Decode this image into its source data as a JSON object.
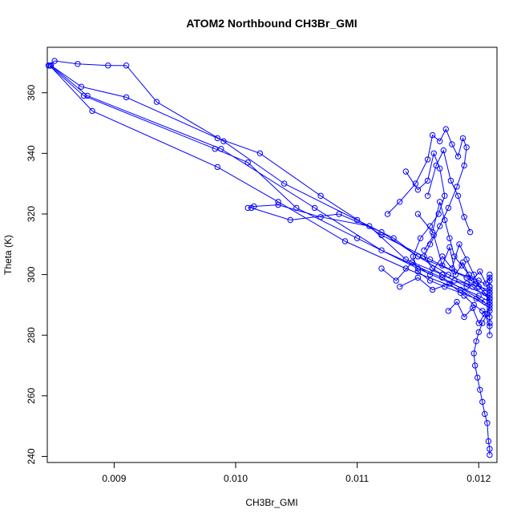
{
  "chart_data": {
    "type": "line",
    "title": "ATOM2 Northbound CH3Br_GMI",
    "xlabel": "CH3Br_GMI",
    "ylabel": "Theta (K)",
    "xlim": [
      0.00845,
      0.01215
    ],
    "ylim": [
      238,
      375
    ],
    "xticks": [
      0.009,
      0.01,
      0.011,
      0.012
    ],
    "xtick_labels": [
      "0.009",
      "0.010",
      "0.011",
      "0.012"
    ],
    "yticks": [
      240,
      260,
      280,
      300,
      320,
      340,
      360
    ],
    "ytick_labels": [
      "240",
      "260",
      "280",
      "300",
      "320",
      "340",
      "360"
    ],
    "grid": false,
    "color": "#0000ff",
    "marker": "open-circle",
    "series": [
      {
        "x": [
          0.01209,
          0.01209,
          0.01208,
          0.01207,
          0.01205,
          0.01203,
          0.01201,
          0.01199,
          0.01197,
          0.01196,
          0.01198,
          0.012,
          0.01203,
          0.01207,
          0.01209,
          0.01209,
          0.01209,
          0.01209,
          0.01209,
          0.01209,
          0.01209,
          0.01209,
          0.01209,
          0.01209,
          0.01209
        ],
        "y": [
          240.5,
          242.5,
          245,
          251,
          254,
          258,
          262,
          266,
          270,
          274,
          278,
          281,
          284,
          287,
          290,
          292,
          294,
          296,
          298,
          300,
          296,
          292,
          288,
          284,
          280
        ]
      },
      {
        "x": [
          0.00846,
          0.00851,
          0.0087,
          0.00895,
          0.0091,
          0.00935,
          0.0099,
          0.0104,
          0.011,
          0.0113,
          0.0115,
          0.0118,
          0.012,
          0.01209
        ],
        "y": [
          369,
          370.5,
          369.5,
          369,
          369,
          357,
          344,
          330,
          318,
          312,
          306,
          301,
          298,
          296
        ]
      },
      {
        "x": [
          0.00848,
          0.00873,
          0.0091,
          0.00985,
          0.0102,
          0.0107,
          0.0112,
          0.0116,
          0.0119,
          0.01209
        ],
        "y": [
          369,
          362,
          358.5,
          345,
          340,
          326,
          313,
          305,
          299,
          294
        ]
      },
      {
        "x": [
          0.00847,
          0.00875,
          0.00983,
          0.0101,
          0.0105,
          0.011,
          0.0115,
          0.012,
          0.01209
        ],
        "y": [
          369,
          359,
          341.5,
          337,
          322,
          312,
          302,
          293,
          291
        ]
      },
      {
        "x": [
          0.00847,
          0.00882,
          0.00985,
          0.01035,
          0.0109,
          0.0114,
          0.01185,
          0.01209
        ],
        "y": [
          369,
          354,
          335.5,
          324,
          311,
          302,
          295,
          289
        ]
      },
      {
        "x": [
          0.00848,
          0.00878,
          0.00988,
          0.01065,
          0.0112,
          0.0117,
          0.01205
        ],
        "y": [
          369,
          359,
          341.5,
          322,
          308,
          299,
          291
        ]
      },
      {
        "x": [
          0.0101,
          0.01015,
          0.01035,
          0.0107,
          0.0111,
          0.0114,
          0.0117,
          0.0119,
          0.01209
        ],
        "y": [
          322,
          322.5,
          323,
          319,
          316,
          305,
          300,
          296,
          293
        ]
      },
      {
        "x": [
          0.01013,
          0.01045,
          0.01085,
          0.0112,
          0.0115,
          0.01175,
          0.01195,
          0.01209
        ],
        "y": [
          322,
          318,
          320,
          314,
          306,
          300,
          296,
          292
        ]
      },
      {
        "x": [
          0.01125,
          0.01135,
          0.01148,
          0.01158,
          0.01162,
          0.01168,
          0.01173,
          0.01178,
          0.01183,
          0.01187,
          0.0119,
          0.01188,
          0.01182,
          0.01175,
          0.01168,
          0.0116,
          0.01155,
          0.01162,
          0.0117,
          0.0118,
          0.0119,
          0.012,
          0.01209
        ],
        "y": [
          320,
          324,
          330,
          338,
          346,
          344,
          348,
          343,
          339,
          345,
          342,
          336,
          329,
          322,
          316,
          310,
          306,
          302,
          300,
          298,
          297,
          296,
          295
        ]
      },
      {
        "x": [
          0.0114,
          0.0115,
          0.01158,
          0.01163,
          0.01168,
          0.01172,
          0.01167,
          0.0116,
          0.01152,
          0.01146,
          0.0115,
          0.0116,
          0.01172,
          0.01185,
          0.01198,
          0.01209
        ],
        "y": [
          334,
          328,
          331,
          340,
          335,
          326,
          320,
          316,
          312,
          306,
          301,
          298,
          296,
          294,
          292,
          290
        ]
      },
      {
        "x": [
          0.0112,
          0.01132,
          0.01145,
          0.0116,
          0.0117,
          0.01178,
          0.01184,
          0.0119,
          0.01196,
          0.012,
          0.01205,
          0.01209
        ],
        "y": [
          302,
          298,
          304,
          300,
          306,
          302,
          310,
          305,
          300,
          296,
          294,
          291
        ]
      },
      {
        "x": [
          0.01135,
          0.0115,
          0.01162,
          0.01176,
          0.01188,
          0.01196,
          0.01203,
          0.01209
        ],
        "y": [
          296,
          299,
          295,
          297,
          293,
          290,
          288,
          286
        ]
      },
      {
        "x": [
          0.0115,
          0.01162,
          0.01168,
          0.01172,
          0.01176,
          0.0118,
          0.01186,
          0.01192,
          0.01198,
          0.01205,
          0.01209
        ],
        "y": [
          320,
          314,
          324,
          318,
          312,
          306,
          303,
          300,
          297,
          294,
          292
        ]
      },
      {
        "x": [
          0.01155,
          0.01163,
          0.0117,
          0.01176,
          0.01181,
          0.01187,
          0.01194,
          0.01201,
          0.01206,
          0.01209
        ],
        "y": [
          308,
          313,
          303,
          309,
          300,
          304,
          298,
          301,
          297,
          299
        ]
      },
      {
        "x": [
          0.01175,
          0.01182,
          0.01188,
          0.01195,
          0.012,
          0.01205,
          0.01209
        ],
        "y": [
          288,
          291,
          286,
          289,
          284,
          287,
          283
        ]
      },
      {
        "x": [
          0.01158,
          0.01165,
          0.01171,
          0.01177,
          0.01183,
          0.01188,
          0.01193
        ],
        "y": [
          326,
          336,
          341,
          331,
          326,
          319,
          314
        ]
      }
    ]
  }
}
